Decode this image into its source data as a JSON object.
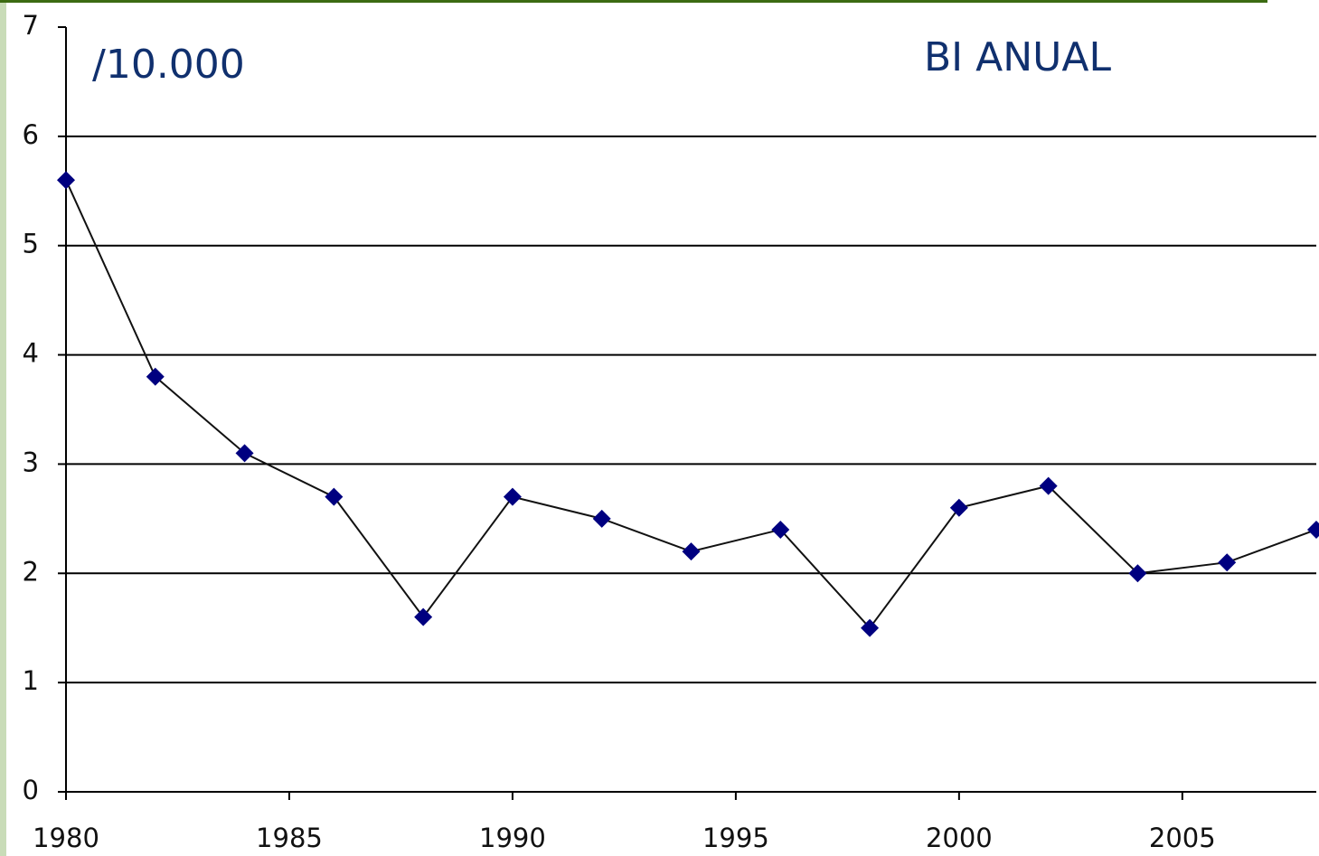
{
  "chart_data": {
    "type": "line",
    "annotations": [
      "/10.000",
      "BI ANUAL"
    ],
    "x": [
      1980,
      1982,
      1984,
      1986,
      1988,
      1990,
      1992,
      1994,
      1996,
      1998,
      2000,
      2002,
      2004,
      2006,
      2008
    ],
    "series": [
      {
        "color": "#000080",
        "values": [
          5.6,
          3.8,
          3.1,
          2.7,
          1.6,
          2.7,
          2.5,
          2.2,
          2.4,
          1.5,
          2.6,
          2.8,
          2.0,
          2.1,
          2.4
        ]
      }
    ],
    "xlim": [
      1980,
      2008
    ],
    "xticks": [
      1980,
      1985,
      1990,
      1995,
      2000,
      2005
    ],
    "ylim": [
      0,
      7
    ],
    "yticks": [
      0,
      1,
      2,
      3,
      4,
      5,
      6,
      7
    ],
    "grid": true
  }
}
